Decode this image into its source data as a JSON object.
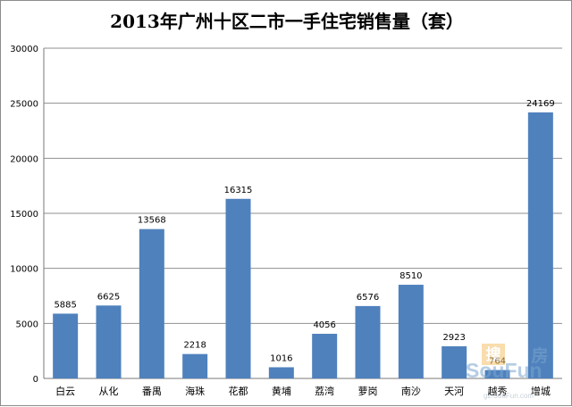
{
  "chart_data": {
    "type": "bar",
    "title": "2013年广州十区二市一手住宅销售量（套）",
    "xlabel": "",
    "ylabel": "",
    "categories": [
      "白云",
      "从化",
      "番禺",
      "海珠",
      "花都",
      "黄埔",
      "荔湾",
      "萝岗",
      "南沙",
      "天河",
      "越秀",
      "增城"
    ],
    "values": [
      5885,
      6625,
      13568,
      2218,
      16315,
      1016,
      4056,
      6576,
      8510,
      2923,
      764,
      24169
    ],
    "ylim": [
      0,
      30000
    ],
    "yticks": [
      0,
      5000,
      10000,
      15000,
      20000,
      25000,
      30000
    ],
    "grid": true,
    "legend": "none",
    "bar_color": "#4f81bd"
  },
  "watermark": {
    "brand": "SouFun",
    "glyph_top": "搜",
    "glyph_right": "房",
    "url": "gz.SouFun.com"
  }
}
